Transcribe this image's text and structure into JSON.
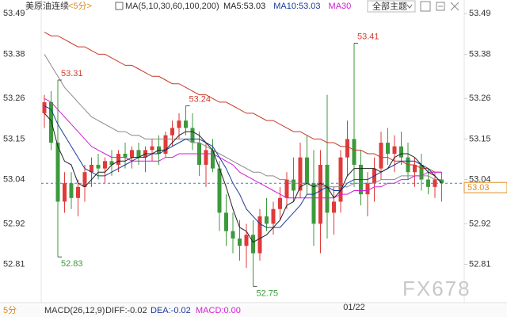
{
  "header": {
    "symbol": "美原油连续",
    "period": "<5分>",
    "ma_params": "MA(5,10,30,60,100,200)",
    "theme_button": "全部主题"
  },
  "footer": {
    "period": "5分",
    "indicator": "MACD(26,12,9)",
    "diff": "DIFF:-0.02",
    "dea": "DEA:-0.02",
    "macd": "MACD:0.00"
  },
  "watermark": "FX678",
  "chart_data": {
    "type": "candlestick",
    "ylim": [
      52.71,
      53.51
    ],
    "yticks": [
      53.49,
      53.38,
      53.26,
      53.15,
      53.04,
      52.92,
      52.81
    ],
    "grid": false,
    "up_color": "#e03a3a",
    "down_color": "#3c9a3c",
    "categories": [
      null,
      null,
      null,
      null,
      null,
      null,
      null,
      null,
      null,
      null,
      null,
      null,
      null,
      null,
      null,
      null,
      null,
      null,
      null,
      null,
      null,
      null,
      null,
      null,
      null,
      null,
      null,
      null,
      null,
      null,
      null,
      null,
      null,
      null,
      null,
      null,
      null,
      null,
      null,
      null,
      null,
      null,
      null,
      null,
      null,
      null,
      "01/22",
      null,
      null,
      null,
      null,
      null,
      null,
      null,
      null,
      null,
      null,
      null,
      null,
      null
    ],
    "candles": [
      [
        53.22,
        53.27,
        53.18,
        53.25
      ],
      [
        53.25,
        53.28,
        53.12,
        53.14
      ],
      [
        53.14,
        53.31,
        52.83,
        52.98
      ],
      [
        52.98,
        53.06,
        52.95,
        53.03
      ],
      [
        53.03,
        53.06,
        52.96,
        52.99
      ],
      [
        52.99,
        53.04,
        52.94,
        53.02
      ],
      [
        53.02,
        53.08,
        52.98,
        53.06
      ],
      [
        53.06,
        53.1,
        53.02,
        53.08
      ],
      [
        53.08,
        53.11,
        53.04,
        53.07
      ],
      [
        53.07,
        53.1,
        53.03,
        53.09
      ],
      [
        53.09,
        53.12,
        53.05,
        53.08
      ],
      [
        53.08,
        53.12,
        53.06,
        53.11
      ],
      [
        53.11,
        53.14,
        53.07,
        53.1
      ],
      [
        53.1,
        53.13,
        53.07,
        53.12
      ],
      [
        53.12,
        53.14,
        53.08,
        53.1
      ],
      [
        53.1,
        53.13,
        53.06,
        53.12
      ],
      [
        53.12,
        53.15,
        53.09,
        53.13
      ],
      [
        53.13,
        53.16,
        53.08,
        53.11
      ],
      [
        53.11,
        53.17,
        53.1,
        53.16
      ],
      [
        53.16,
        53.2,
        53.13,
        53.18
      ],
      [
        53.18,
        53.22,
        53.15,
        53.2
      ],
      [
        53.2,
        53.24,
        53.16,
        53.18
      ],
      [
        53.18,
        53.22,
        53.12,
        53.14
      ],
      [
        53.14,
        53.17,
        53.05,
        53.08
      ],
      [
        53.08,
        53.14,
        53.02,
        53.12
      ],
      [
        53.12,
        53.15,
        53.06,
        53.07
      ],
      [
        53.07,
        53.09,
        52.9,
        52.95
      ],
      [
        52.95,
        53.0,
        52.86,
        52.9
      ],
      [
        52.9,
        52.95,
        52.84,
        52.88
      ],
      [
        52.88,
        52.93,
        52.82,
        52.86
      ],
      [
        52.86,
        52.92,
        52.8,
        52.89
      ],
      [
        52.89,
        52.93,
        52.75,
        52.84
      ],
      [
        52.84,
        52.96,
        52.82,
        52.94
      ],
      [
        52.94,
        52.99,
        52.9,
        52.92
      ],
      [
        52.92,
        52.98,
        52.89,
        52.96
      ],
      [
        52.96,
        53.02,
        52.93,
        52.99
      ],
      [
        52.99,
        53.06,
        52.96,
        53.04
      ],
      [
        53.04,
        53.1,
        52.98,
        53.01
      ],
      [
        53.01,
        53.14,
        52.99,
        53.1
      ],
      [
        53.1,
        53.16,
        53.0,
        53.03
      ],
      [
        53.03,
        53.12,
        52.86,
        52.92
      ],
      [
        52.92,
        53.12,
        52.84,
        53.08
      ],
      [
        53.08,
        53.27,
        52.88,
        52.95
      ],
      [
        52.95,
        53.02,
        52.89,
        52.98
      ],
      [
        52.98,
        53.12,
        52.95,
        53.1
      ],
      [
        53.1,
        53.2,
        53.05,
        53.15
      ],
      [
        53.15,
        53.41,
        53.02,
        53.08
      ],
      [
        53.08,
        53.12,
        52.97,
        53.0
      ],
      [
        53.0,
        53.06,
        52.94,
        53.03
      ],
      [
        53.03,
        53.1,
        52.98,
        53.07
      ],
      [
        53.07,
        53.17,
        53.04,
        53.14
      ],
      [
        53.14,
        53.18,
        53.08,
        53.11
      ],
      [
        53.11,
        53.16,
        53.06,
        53.13
      ],
      [
        53.13,
        53.17,
        53.08,
        53.1
      ],
      [
        53.1,
        53.14,
        53.04,
        53.06
      ],
      [
        53.06,
        53.1,
        53.02,
        53.08
      ],
      [
        53.08,
        53.11,
        53.01,
        53.04
      ],
      [
        53.04,
        53.07,
        53.0,
        53.02
      ],
      [
        53.02,
        53.06,
        52.99,
        53.04
      ],
      [
        53.04,
        53.06,
        52.98,
        53.03
      ]
    ],
    "high_marks": [
      53.31,
      53.24,
      53.41
    ],
    "low_marks": [
      52.83,
      52.75
    ],
    "high_color": "#d04030",
    "low_color": "#3c9a3c",
    "last_price": 53.03,
    "series": [
      {
        "color": "#c83a2a",
        "values": [
          53.44,
          53.43,
          53.43,
          53.42,
          53.41,
          53.4,
          53.4,
          53.39,
          53.38,
          53.38,
          53.37,
          53.36,
          53.35,
          53.35,
          53.34,
          53.33,
          53.32,
          53.32,
          53.31,
          53.3,
          53.3,
          53.29,
          53.28,
          53.27,
          53.27,
          53.26,
          53.25,
          53.25,
          53.24,
          53.23,
          53.22,
          53.22,
          53.21,
          53.2,
          53.2,
          53.19,
          53.18,
          53.17,
          53.17,
          53.16,
          53.15,
          53.15,
          53.14,
          53.14,
          53.13,
          53.13,
          53.12,
          53.12,
          53.11,
          53.11,
          53.1,
          53.1,
          53.09,
          53.09,
          53.08,
          53.08,
          53.07,
          53.07,
          53.06,
          53.06
        ]
      },
      {
        "color": "#8a8a8a",
        "values": [
          53.38,
          53.35,
          53.32,
          53.29,
          53.27,
          53.25,
          53.23,
          53.21,
          53.2,
          53.19,
          53.18,
          53.17,
          53.17,
          53.16,
          53.16,
          53.15,
          53.15,
          53.15,
          53.15,
          53.15,
          53.15,
          53.15,
          53.14,
          53.14,
          53.13,
          53.12,
          53.11,
          53.1,
          53.09,
          53.08,
          53.07,
          53.06,
          53.06,
          53.05,
          53.05,
          53.04,
          53.04,
          53.03,
          53.03,
          53.03,
          53.02,
          53.02,
          53.02,
          53.02,
          53.02,
          53.02,
          53.03,
          53.03,
          53.03,
          53.03,
          53.04,
          53.04,
          53.04,
          53.05,
          53.05,
          53.05,
          53.05,
          53.05,
          53.04,
          53.04
        ]
      },
      {
        "name": "MA30",
        "color": "#d020d0",
        "values": [
          53.26,
          53.25,
          53.23,
          53.21,
          53.19,
          53.17,
          53.15,
          53.13,
          53.12,
          53.11,
          53.1,
          53.1,
          53.1,
          53.09,
          53.09,
          53.09,
          53.09,
          53.09,
          53.1,
          53.1,
          53.11,
          53.11,
          53.11,
          53.11,
          53.11,
          53.11,
          53.1,
          53.09,
          53.08,
          53.06,
          53.05,
          53.04,
          53.03,
          53.02,
          53.01,
          53.0,
          52.99,
          52.99,
          52.99,
          52.99,
          52.99,
          52.99,
          52.99,
          52.99,
          53.0,
          53.0,
          53.01,
          53.01,
          53.01,
          53.02,
          53.02,
          53.03,
          53.03,
          53.04,
          53.04,
          53.05,
          53.05,
          53.06,
          53.06,
          53.06
        ]
      },
      {
        "name": "MA10:53.03",
        "color": "#1a3a9a",
        "values": [
          53.24,
          53.23,
          53.19,
          53.16,
          53.13,
          53.1,
          53.07,
          53.06,
          53.05,
          53.05,
          53.06,
          53.07,
          53.08,
          53.09,
          53.1,
          53.1,
          53.11,
          53.11,
          53.12,
          53.13,
          53.14,
          53.15,
          53.15,
          53.15,
          53.14,
          53.13,
          53.1,
          53.07,
          53.03,
          53.0,
          52.96,
          52.94,
          52.92,
          52.91,
          52.91,
          52.91,
          52.93,
          52.95,
          52.97,
          53.0,
          53.0,
          53.01,
          53.02,
          53.01,
          53.01,
          53.03,
          53.04,
          53.04,
          53.04,
          53.05,
          53.06,
          53.07,
          53.08,
          53.09,
          53.09,
          53.09,
          53.08,
          53.07,
          53.05,
          53.03
        ]
      },
      {
        "name": "MA5:53.03",
        "color": "#222222",
        "values": [
          53.22,
          53.2,
          53.13,
          53.09,
          53.08,
          53.03,
          53.02,
          53.04,
          53.06,
          53.06,
          53.08,
          53.09,
          53.09,
          53.1,
          53.1,
          53.11,
          53.11,
          53.12,
          53.12,
          53.14,
          53.16,
          53.17,
          53.17,
          53.16,
          53.14,
          53.12,
          53.07,
          53.02,
          52.96,
          52.91,
          52.9,
          52.87,
          52.88,
          52.89,
          52.91,
          52.93,
          52.97,
          52.98,
          53.02,
          53.03,
          53.02,
          53.03,
          53.02,
          52.99,
          53.01,
          53.05,
          53.07,
          53.07,
          53.07,
          53.07,
          53.06,
          53.07,
          53.1,
          53.11,
          53.11,
          53.1,
          53.08,
          53.06,
          53.05,
          53.03
        ]
      }
    ]
  }
}
